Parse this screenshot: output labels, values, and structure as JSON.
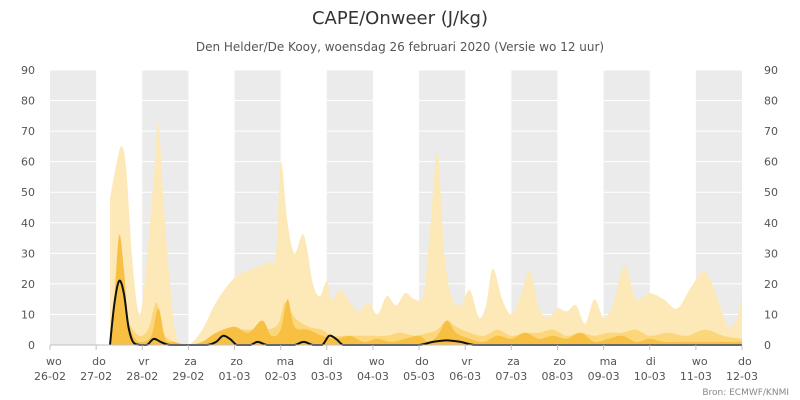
{
  "chart_data": {
    "type": "area",
    "title": "CAPE/Onweer (J/kg)",
    "subtitle": "Den Helder/De Kooy, woensdag 26 februari 2020 (Versie wo 12 uur)",
    "credit": "Bron: ECMWF/KNMI",
    "ylim": [
      0,
      90
    ],
    "yticks": [
      0,
      10,
      20,
      30,
      40,
      50,
      60,
      70,
      80,
      90
    ],
    "xlim": [
      0,
      15
    ],
    "x_unit": "days from wo 26-02 00:00",
    "day_labels": [
      {
        "day": "wo",
        "date": "26-02"
      },
      {
        "day": "do",
        "date": "27-02"
      },
      {
        "day": "vr",
        "date": "28-02"
      },
      {
        "day": "za",
        "date": "29-02"
      },
      {
        "day": "zo",
        "date": "01-03"
      },
      {
        "day": "ma",
        "date": "02-03"
      },
      {
        "day": "di",
        "date": "03-03"
      },
      {
        "day": "wo",
        "date": "04-03"
      },
      {
        "day": "do",
        "date": "05-03"
      },
      {
        "day": "vr",
        "date": "06-03"
      },
      {
        "day": "za",
        "date": "07-03"
      },
      {
        "day": "zo",
        "date": "08-03"
      },
      {
        "day": "ma",
        "date": "09-03"
      },
      {
        "day": "di",
        "date": "10-03"
      },
      {
        "day": "wo",
        "date": "11-03"
      },
      {
        "day": "do",
        "date": "12-03"
      }
    ],
    "colors": {
      "band": "#ebebeb",
      "max": "#fde9b8",
      "p75": "#fbd67a",
      "p50": "#f7c043",
      "control": "#111111"
    },
    "series": [
      {
        "key": "max",
        "x": [
          1.3,
          1.45,
          1.55,
          1.65,
          1.8,
          1.95,
          2.1,
          2.25,
          2.35,
          2.45,
          2.6,
          2.75,
          3.0,
          3.3,
          3.6,
          4.0,
          4.4,
          4.7,
          4.9,
          5.0,
          5.15,
          5.3,
          5.5,
          5.7,
          5.85,
          6.0,
          6.1,
          6.3,
          6.5,
          6.7,
          6.9,
          7.1,
          7.3,
          7.5,
          7.7,
          7.9,
          8.1,
          8.25,
          8.4,
          8.55,
          8.7,
          8.9,
          9.1,
          9.3,
          9.45,
          9.6,
          9.8,
          10.0,
          10.2,
          10.4,
          10.6,
          10.8,
          11.0,
          11.2,
          11.4,
          11.6,
          11.8,
          12.0,
          12.2,
          12.45,
          12.7,
          13.0,
          13.3,
          13.6,
          13.9,
          14.2,
          14.5,
          14.7,
          14.9,
          15.0
        ],
        "y": [
          48,
          60,
          65,
          58,
          25,
          10,
          28,
          55,
          73,
          50,
          20,
          2,
          0,
          5,
          14,
          22,
          25,
          27,
          30,
          60,
          40,
          30,
          36,
          20,
          16,
          21,
          15,
          18,
          14,
          11,
          14,
          10,
          16,
          13,
          17,
          15,
          17,
          40,
          63,
          30,
          16,
          13,
          18,
          9,
          13,
          25,
          15,
          10,
          16,
          24,
          12,
          9,
          12,
          11,
          13,
          7,
          15,
          9,
          13,
          26,
          15,
          17,
          15,
          12,
          19,
          24,
          14,
          6,
          9,
          17
        ]
      },
      {
        "key": "p75",
        "x": [
          1.3,
          1.4,
          1.5,
          1.6,
          1.7,
          1.85,
          2.0,
          2.15,
          2.3,
          2.4,
          2.5,
          2.7,
          3.0,
          3.5,
          3.8,
          4.1,
          4.4,
          4.7,
          4.95,
          5.1,
          5.3,
          5.6,
          5.9,
          6.1,
          6.4,
          6.7,
          7.0,
          7.3,
          7.6,
          7.9,
          8.2,
          8.4,
          8.6,
          8.8,
          9.1,
          9.4,
          9.7,
          10.0,
          10.3,
          10.6,
          10.9,
          11.2,
          11.5,
          11.8,
          12.1,
          12.4,
          12.7,
          13.0,
          13.4,
          13.8,
          14.2,
          14.6,
          15.0
        ],
        "y": [
          2,
          15,
          22,
          15,
          8,
          4,
          3,
          6,
          14,
          8,
          3,
          1,
          0,
          2,
          4,
          5,
          5,
          5,
          7,
          14,
          9,
          6,
          5,
          3,
          3,
          3,
          3,
          3,
          4,
          3,
          4,
          5,
          8,
          6,
          4,
          3,
          5,
          3,
          4,
          4,
          5,
          3,
          4,
          3,
          4,
          4,
          5,
          3,
          4,
          3,
          5,
          3,
          2
        ]
      },
      {
        "key": "p50",
        "x": [
          1.3,
          1.4,
          1.5,
          1.6,
          1.7,
          1.85,
          2.0,
          2.2,
          2.35,
          2.5,
          2.7,
          3.0,
          3.3,
          3.6,
          4.0,
          4.3,
          4.6,
          4.8,
          5.0,
          5.15,
          5.3,
          5.6,
          5.9,
          6.2,
          6.5,
          6.8,
          7.1,
          7.4,
          7.7,
          8.0,
          8.2,
          8.4,
          8.6,
          8.8,
          9.1,
          9.4,
          9.7,
          10.0,
          10.3,
          10.6,
          10.9,
          11.2,
          11.5,
          11.8,
          12.1,
          12.4,
          12.7,
          13.0,
          13.3,
          13.6,
          14.0,
          14.4,
          14.8,
          15.0
        ],
        "y": [
          0,
          17,
          36,
          25,
          8,
          2,
          1,
          3,
          12,
          2,
          1,
          0,
          1,
          4,
          6,
          4,
          8,
          3,
          5,
          15,
          6,
          5,
          3,
          2,
          3,
          1,
          2,
          1,
          2,
          3,
          1,
          3,
          8,
          4,
          2,
          1,
          3,
          2,
          4,
          2,
          3,
          2,
          4,
          1,
          2,
          3,
          1,
          2,
          1,
          1,
          1,
          1,
          1,
          1
        ]
      },
      {
        "key": "control",
        "x": [
          1.3,
          1.4,
          1.5,
          1.6,
          1.7,
          1.8,
          1.95,
          2.1,
          2.25,
          2.4,
          2.6,
          3.0,
          3.4,
          3.6,
          3.75,
          3.9,
          4.05,
          4.2,
          4.35,
          4.5,
          4.7,
          4.9,
          5.1,
          5.3,
          5.5,
          5.7,
          5.9,
          6.05,
          6.2,
          6.35,
          6.5,
          6.8,
          7.2,
          7.6,
          8.0,
          8.3,
          8.6,
          8.9,
          9.2,
          9.6,
          10.0,
          11.0,
          12.0,
          13.0,
          14.0,
          15.0
        ],
        "y": [
          0,
          14,
          21,
          17,
          6,
          1,
          0,
          0,
          2,
          1,
          0,
          0,
          0,
          1,
          3,
          2,
          0,
          0,
          0,
          1,
          0,
          0,
          0,
          0,
          1,
          0,
          0,
          3,
          2,
          0,
          0,
          0,
          0,
          0,
          0,
          1,
          1.5,
          1,
          0,
          0,
          0,
          0,
          0,
          0,
          0,
          0
        ]
      }
    ]
  }
}
